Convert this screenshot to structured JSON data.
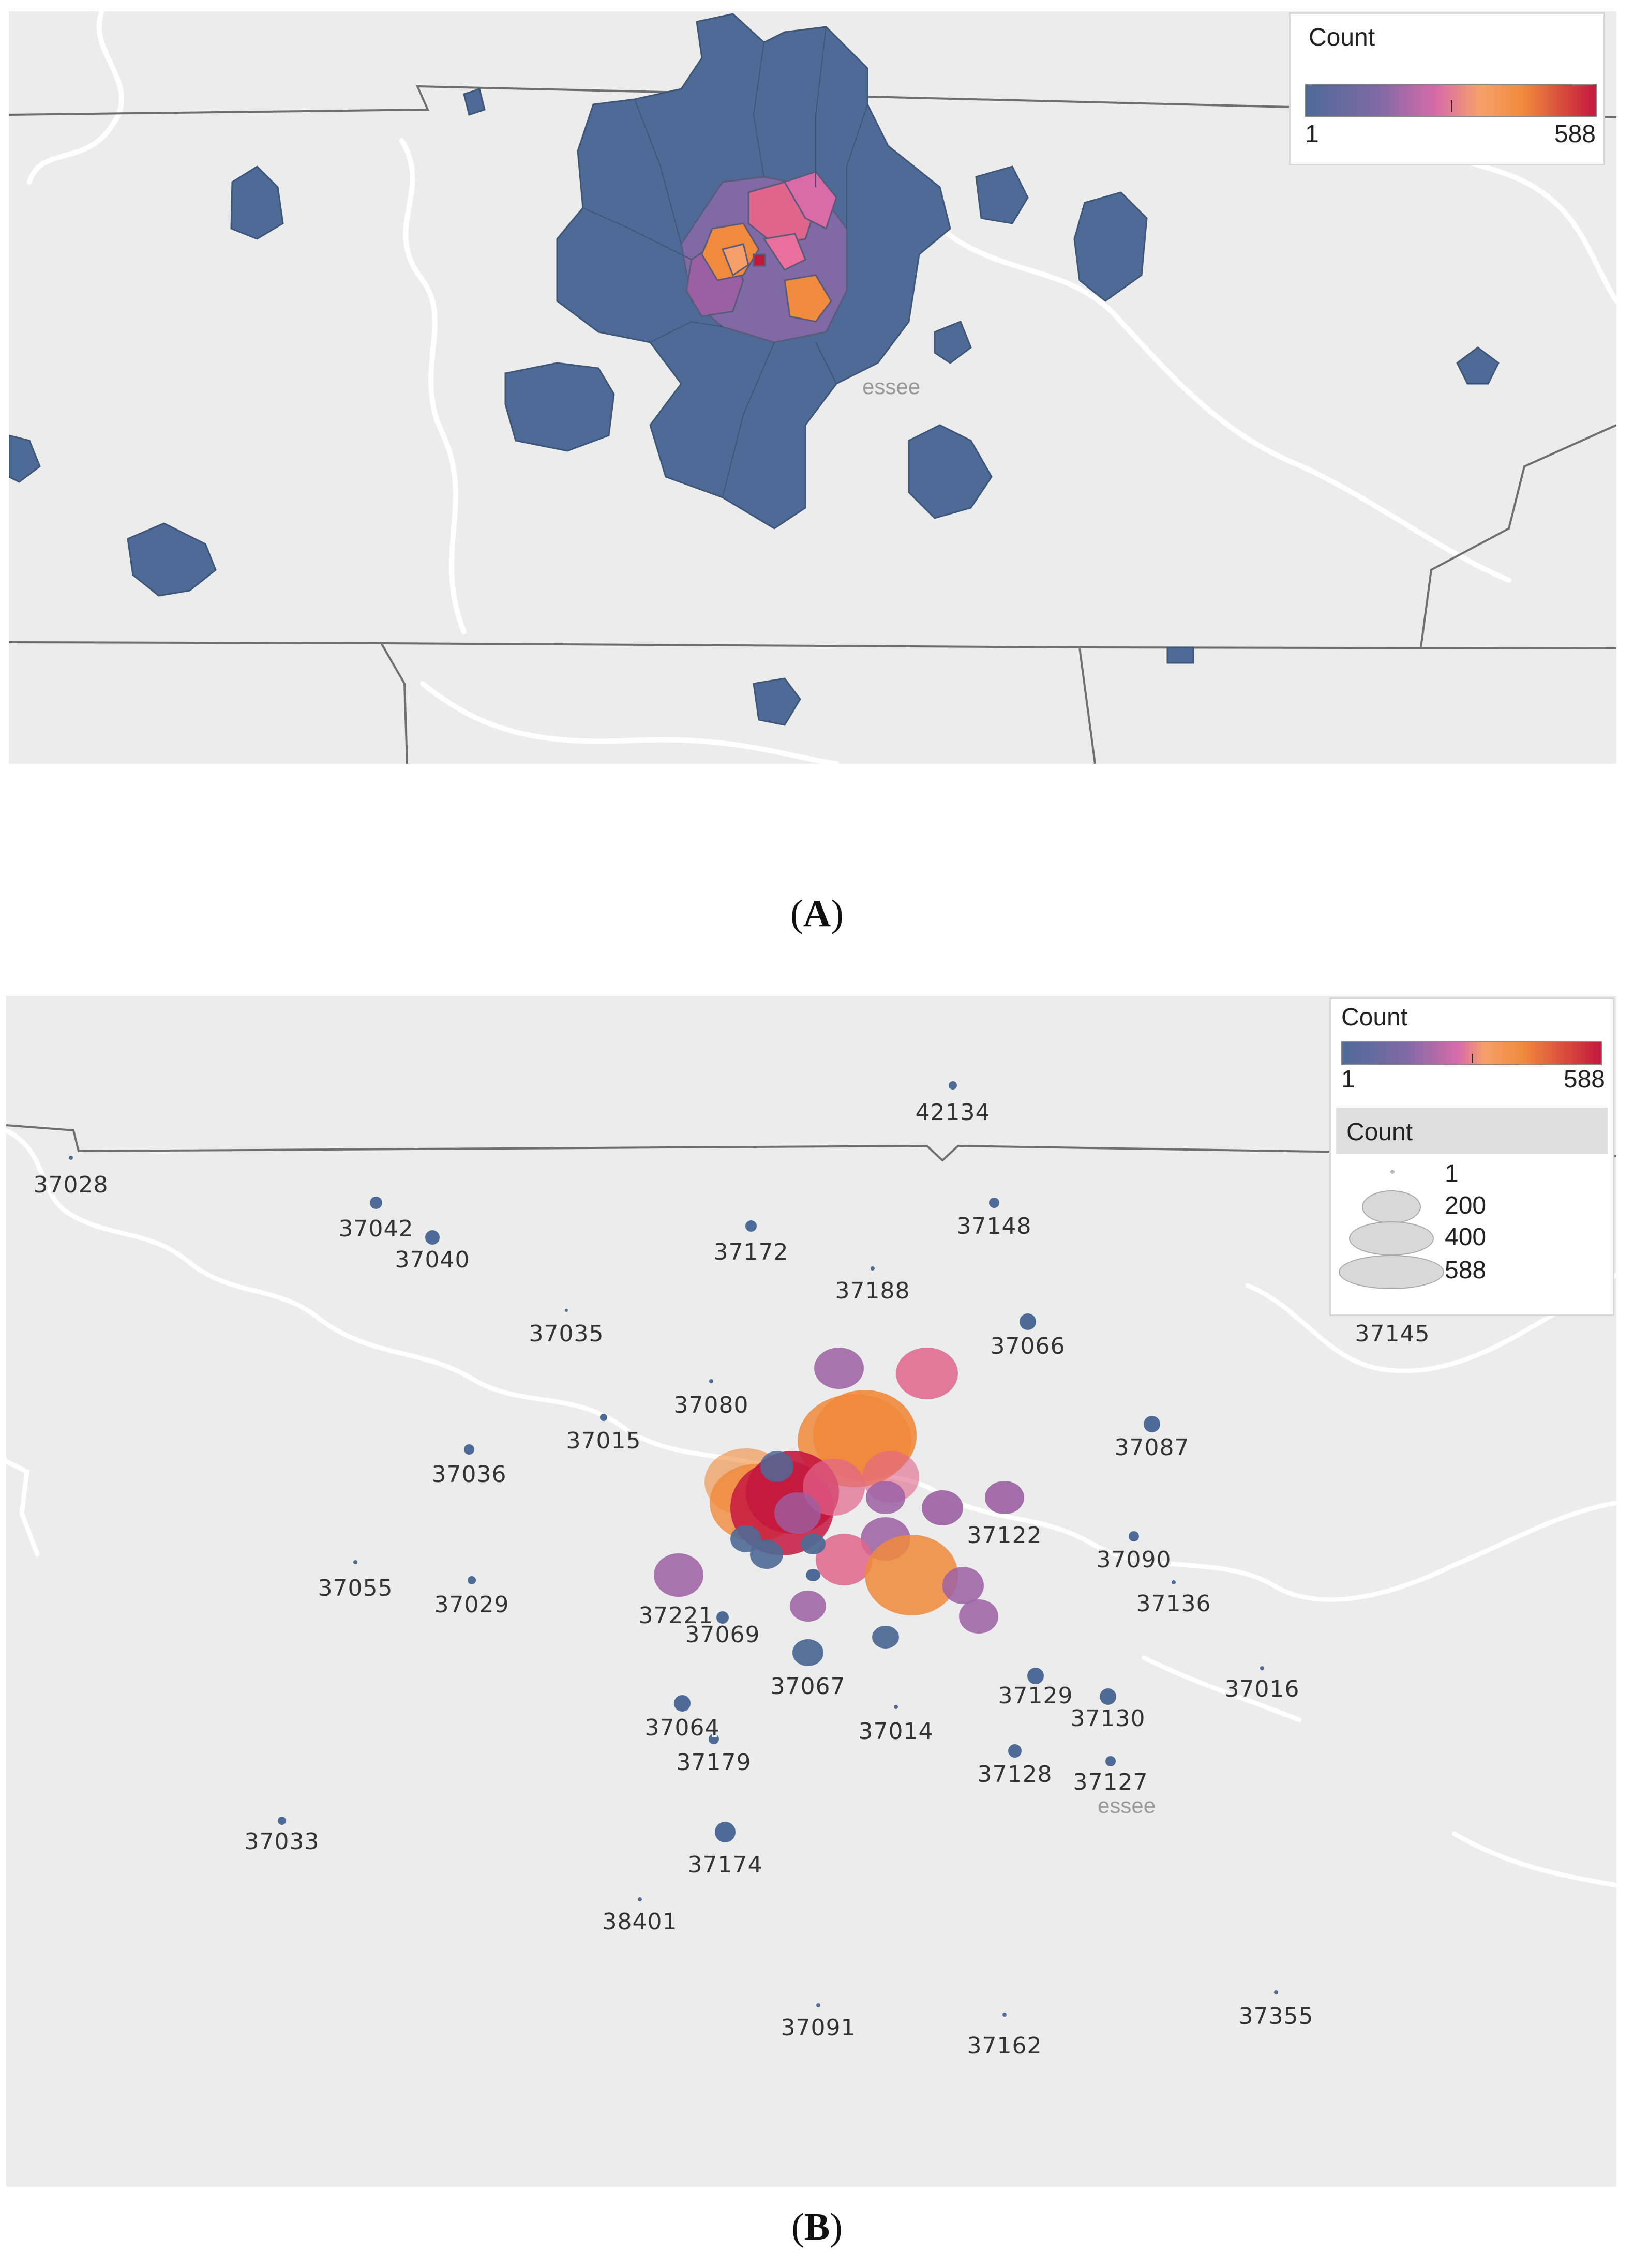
{
  "panel_a": {
    "caption_label": "A",
    "legend": {
      "title": "Count",
      "min": "1",
      "max": "588"
    },
    "place_label": "essee"
  },
  "panel_b": {
    "caption_label": "B",
    "color_legend": {
      "title": "Count",
      "min": "1",
      "max": "588"
    },
    "size_legend": {
      "title": "Count",
      "values": [
        "1",
        "200",
        "400",
        "588"
      ]
    },
    "place_label": "essee",
    "zip_labels": [
      "42134",
      "37028",
      "37042",
      "37040",
      "37172",
      "37148",
      "37188",
      "37035",
      "37066",
      "37145",
      "37080",
      "37015",
      "37087",
      "37036",
      "37122",
      "37090",
      "37055",
      "37029",
      "37136",
      "37221",
      "37069",
      "37016",
      "37129",
      "37067",
      "37064",
      "37130",
      "37014",
      "37179",
      "37128",
      "37127",
      "37033",
      "37174",
      "38401",
      "37355",
      "37091",
      "37162"
    ]
  },
  "colors": {
    "low": "#4e6a96",
    "mid_low": "#9b5fa3",
    "mid": "#e0658c",
    "mid_high": "#f08a3c",
    "high": "#c4173e",
    "map_bg": "#ececec",
    "border": "#6f6f6f",
    "river": "#ffffff"
  }
}
